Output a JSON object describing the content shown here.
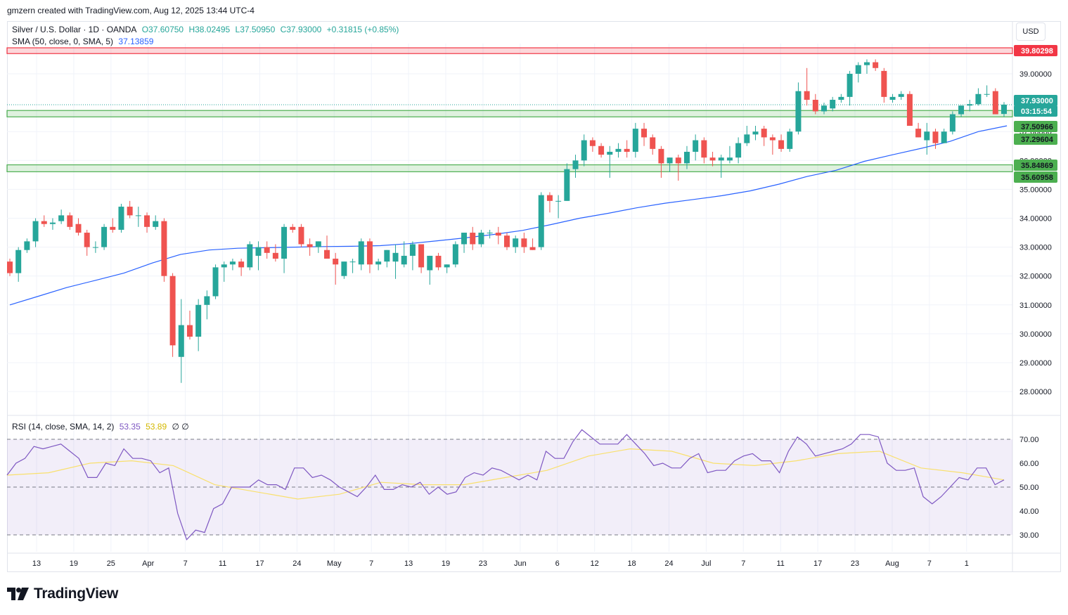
{
  "header": {
    "caption": "gmzern created with TradingView.com, Aug 12, 2025 13:44 UTC-4"
  },
  "legend": {
    "symbol": "Silver / U.S. Dollar · 1D · OANDA",
    "open": "O37.60750",
    "high": "H38.02495",
    "low": "L37.50950",
    "close": "C37.93000",
    "change": "+0.31815 (+0.85%)",
    "sma_label": "SMA (50, close, 0, SMA, 5)",
    "sma_value": "37.13859",
    "rsi_label": "RSI (14, close, SMA, 14, 2)",
    "rsi_value": "53.35",
    "rsi_sma_value": "53.89",
    "rsi_extra": "∅ ∅"
  },
  "currency": "USD",
  "branding": {
    "logo_text": "TradingView"
  },
  "colors": {
    "up": "#26a69a",
    "down": "#ef5350",
    "sma": "#2962ff",
    "rsi": "#7e57c2",
    "rsi_sma": "#f9e06d",
    "resistance": "#f23645",
    "support": "#4caf50"
  },
  "chart_data": {
    "type": "candlestick",
    "price_axis": {
      "ticks": [
        "28.00000",
        "29.00000",
        "30.00000",
        "31.00000",
        "32.00000",
        "33.00000",
        "34.00000",
        "35.00000",
        "36.00000",
        "37.00000",
        "39.00000"
      ]
    },
    "time_axis": [
      "13",
      "19",
      "25",
      "Apr",
      "7",
      "11",
      "17",
      "24",
      "May",
      "7",
      "13",
      "19",
      "23",
      "Jun",
      "6",
      "12",
      "18",
      "24",
      "Jul",
      "7",
      "11",
      "17",
      "23",
      "Aug",
      "7",
      "1"
    ],
    "price_labels": [
      {
        "text": "39.80298",
        "value": 39.80298,
        "kind": "resistance"
      },
      {
        "text": "37.93000",
        "value": 37.93,
        "kind": "last"
      },
      {
        "text": "03:15:54",
        "value": 37.93,
        "kind": "countdown"
      },
      {
        "text": "37.50966",
        "value": 37.50966,
        "kind": "support"
      },
      {
        "text": "37.29604",
        "value": 37.29604,
        "kind": "support"
      },
      {
        "text": "35.84869",
        "value": 35.84869,
        "kind": "support"
      },
      {
        "text": "35.60958",
        "value": 35.60958,
        "kind": "support"
      }
    ],
    "zones": [
      {
        "kind": "resistance",
        "low": 39.7,
        "high": 39.9
      },
      {
        "kind": "support",
        "low": 37.50966,
        "high": 37.73
      },
      {
        "kind": "support",
        "low": 35.60958,
        "high": 35.84869
      }
    ],
    "candles": [
      [
        32.5,
        32.6,
        32.0,
        32.1
      ],
      [
        32.1,
        33.0,
        31.8,
        32.9
      ],
      [
        32.9,
        33.3,
        32.8,
        33.2
      ],
      [
        33.2,
        34.0,
        33.0,
        33.9
      ],
      [
        33.9,
        34.1,
        33.7,
        33.8
      ],
      [
        33.8,
        34.0,
        33.6,
        33.85
      ],
      [
        33.9,
        34.3,
        33.8,
        34.1
      ],
      [
        34.1,
        34.2,
        33.6,
        33.7
      ],
      [
        33.8,
        34.0,
        33.4,
        33.5
      ],
      [
        33.5,
        33.6,
        32.7,
        33.0
      ],
      [
        33.0,
        33.2,
        32.8,
        33.0
      ],
      [
        33.0,
        33.8,
        32.9,
        33.7
      ],
      [
        33.7,
        34.0,
        33.5,
        33.6
      ],
      [
        33.6,
        34.5,
        33.5,
        34.4
      ],
      [
        34.4,
        34.6,
        34.0,
        34.1
      ],
      [
        34.1,
        34.4,
        33.7,
        34.1
      ],
      [
        34.1,
        34.2,
        33.5,
        33.7
      ],
      [
        33.7,
        34.1,
        33.6,
        33.9
      ],
      [
        33.9,
        34.0,
        31.8,
        32.0
      ],
      [
        32.0,
        32.1,
        29.2,
        29.6
      ],
      [
        29.2,
        31.2,
        28.3,
        30.3
      ],
      [
        30.3,
        30.8,
        29.8,
        29.9
      ],
      [
        29.9,
        31.2,
        29.4,
        31.0
      ],
      [
        31.0,
        31.5,
        30.5,
        31.3
      ],
      [
        31.3,
        32.4,
        31.2,
        32.3
      ],
      [
        32.3,
        32.5,
        31.8,
        32.4
      ],
      [
        32.4,
        32.6,
        32.2,
        32.5
      ],
      [
        32.5,
        32.6,
        32.0,
        32.3
      ],
      [
        32.3,
        33.2,
        32.2,
        33.1
      ],
      [
        32.7,
        33.2,
        32.2,
        33.0
      ],
      [
        33.0,
        33.2,
        32.6,
        32.8
      ],
      [
        32.8,
        33.1,
        32.5,
        32.6
      ],
      [
        32.6,
        33.8,
        32.1,
        33.7
      ],
      [
        33.7,
        33.8,
        33.5,
        33.6
      ],
      [
        33.7,
        33.8,
        33.0,
        33.1
      ],
      [
        33.1,
        33.3,
        32.7,
        33.0
      ],
      [
        33.0,
        33.2,
        32.8,
        33.2
      ],
      [
        32.9,
        33.4,
        32.7,
        32.6
      ],
      [
        32.6,
        32.8,
        31.7,
        32.4
      ],
      [
        32.0,
        32.5,
        31.9,
        32.5
      ],
      [
        32.5,
        32.6,
        32.1,
        32.5
      ],
      [
        32.4,
        33.3,
        32.2,
        33.2
      ],
      [
        33.2,
        33.3,
        32.1,
        32.4
      ],
      [
        32.4,
        32.6,
        32.2,
        32.5
      ],
      [
        32.5,
        32.9,
        32.3,
        32.9
      ],
      [
        32.5,
        33.1,
        31.9,
        32.8
      ],
      [
        32.4,
        33.2,
        32.3,
        32.7
      ],
      [
        32.7,
        33.2,
        32.2,
        33.1
      ],
      [
        33.1,
        33.1,
        32.1,
        32.3
      ],
      [
        32.2,
        32.7,
        31.7,
        32.7
      ],
      [
        32.7,
        32.8,
        32.2,
        32.3
      ],
      [
        32.3,
        32.4,
        32.1,
        32.4
      ],
      [
        32.4,
        33.2,
        32.3,
        33.1
      ],
      [
        33.1,
        33.5,
        32.8,
        33.5
      ],
      [
        33.5,
        33.7,
        32.9,
        33.1
      ],
      [
        33.1,
        33.6,
        33.0,
        33.5
      ],
      [
        33.5,
        33.6,
        33.3,
        33.5
      ],
      [
        33.5,
        33.7,
        33.1,
        33.4
      ],
      [
        33.4,
        33.5,
        32.9,
        33.0
      ],
      [
        33.0,
        33.4,
        32.8,
        33.3
      ],
      [
        33.3,
        33.5,
        32.8,
        33.0
      ],
      [
        33.0,
        33.3,
        32.9,
        32.9
      ],
      [
        33.0,
        34.9,
        32.9,
        34.8
      ],
      [
        34.8,
        34.9,
        34.2,
        34.6
      ],
      [
        34.6,
        34.8,
        34.0,
        34.6
      ],
      [
        34.6,
        35.9,
        34.6,
        35.7
      ],
      [
        35.7,
        36.2,
        35.4,
        36.0
      ],
      [
        36.0,
        36.9,
        35.8,
        36.7
      ],
      [
        36.7,
        36.8,
        36.3,
        36.5
      ],
      [
        36.5,
        36.6,
        36.1,
        36.2
      ],
      [
        36.2,
        36.5,
        35.4,
        36.3
      ],
      [
        36.3,
        36.6,
        36.1,
        36.4
      ],
      [
        36.4,
        36.7,
        36.1,
        36.3
      ],
      [
        36.3,
        37.3,
        36.1,
        37.1
      ],
      [
        37.1,
        37.3,
        36.5,
        36.8
      ],
      [
        36.8,
        36.9,
        36.2,
        36.4
      ],
      [
        36.4,
        36.5,
        35.4,
        35.9
      ],
      [
        35.9,
        36.1,
        35.6,
        36.1
      ],
      [
        36.1,
        36.2,
        35.3,
        35.9
      ],
      [
        35.9,
        36.5,
        35.7,
        36.3
      ],
      [
        36.3,
        36.9,
        36.0,
        36.7
      ],
      [
        36.7,
        36.8,
        35.9,
        36.1
      ],
      [
        36.1,
        36.3,
        35.8,
        36.0
      ],
      [
        36.0,
        36.2,
        35.4,
        36.1
      ],
      [
        36.0,
        36.5,
        35.9,
        36.1
      ],
      [
        36.1,
        36.8,
        35.9,
        36.6
      ],
      [
        36.6,
        37.2,
        36.5,
        36.9
      ],
      [
        36.9,
        37.2,
        36.7,
        37.0
      ],
      [
        37.1,
        37.2,
        36.5,
        36.8
      ],
      [
        36.8,
        36.9,
        36.2,
        36.7
      ],
      [
        36.7,
        36.9,
        36.3,
        36.4
      ],
      [
        36.4,
        37.1,
        36.3,
        37.0
      ],
      [
        37.0,
        38.7,
        36.9,
        38.4
      ],
      [
        38.4,
        39.2,
        37.9,
        38.1
      ],
      [
        38.1,
        38.3,
        37.6,
        37.7
      ],
      [
        37.7,
        38.0,
        37.6,
        37.9
      ],
      [
        37.8,
        38.2,
        37.7,
        38.1
      ],
      [
        38.1,
        38.3,
        38.0,
        38.2
      ],
      [
        38.2,
        39.1,
        37.9,
        39.0
      ],
      [
        39.0,
        39.4,
        38.7,
        39.3
      ],
      [
        39.3,
        39.5,
        39.0,
        39.4
      ],
      [
        39.4,
        39.5,
        39.1,
        39.2
      ],
      [
        39.1,
        39.2,
        38.0,
        38.2
      ],
      [
        38.1,
        38.3,
        38.0,
        38.2
      ],
      [
        38.2,
        38.4,
        38.1,
        38.3
      ],
      [
        38.3,
        38.4,
        37.2,
        37.2
      ],
      [
        37.1,
        37.3,
        36.8,
        36.8
      ],
      [
        36.7,
        37.3,
        36.2,
        37.0
      ],
      [
        37.0,
        37.1,
        36.4,
        36.6
      ],
      [
        36.6,
        37.1,
        36.6,
        37.0
      ],
      [
        37.0,
        37.7,
        36.9,
        37.6
      ],
      [
        37.6,
        37.9,
        37.5,
        37.9
      ],
      [
        37.9,
        38.1,
        37.7,
        37.95
      ],
      [
        37.95,
        38.5,
        37.9,
        38.3
      ],
      [
        38.3,
        38.6,
        38.2,
        38.3
      ],
      [
        38.4,
        38.5,
        37.6,
        37.6
      ],
      [
        37.61,
        38.02,
        37.51,
        37.93
      ]
    ],
    "sma": [
      [
        0,
        31.0
      ],
      [
        5,
        31.3
      ],
      [
        10,
        31.6
      ],
      [
        15,
        31.85
      ],
      [
        20,
        32.1
      ],
      [
        25,
        32.45
      ],
      [
        30,
        32.75
      ],
      [
        35,
        32.9
      ],
      [
        40,
        32.96
      ],
      [
        45,
        32.98
      ],
      [
        50,
        33.0
      ],
      [
        55,
        33.02
      ],
      [
        60,
        33.03
      ],
      [
        65,
        33.05
      ],
      [
        70,
        33.12
      ],
      [
        75,
        33.22
      ],
      [
        80,
        33.32
      ],
      [
        85,
        33.44
      ],
      [
        90,
        33.58
      ],
      [
        95,
        33.78
      ],
      [
        100,
        34.0
      ],
      [
        105,
        34.17
      ],
      [
        110,
        34.36
      ],
      [
        115,
        34.52
      ],
      [
        120,
        34.65
      ],
      [
        125,
        34.78
      ],
      [
        130,
        34.95
      ],
      [
        135,
        35.18
      ],
      [
        140,
        35.45
      ],
      [
        145,
        35.66
      ],
      [
        150,
        35.97
      ],
      [
        155,
        36.2
      ],
      [
        160,
        36.42
      ],
      [
        165,
        36.66
      ],
      [
        170,
        37.0
      ],
      [
        175,
        37.2
      ]
    ],
    "rsi_axis": {
      "ticks": [
        "30.00",
        "40.00",
        "50.00",
        "60.00",
        "70.00"
      ],
      "band": [
        30,
        70
      ]
    },
    "rsi": [
      [
        0,
        55
      ],
      [
        2,
        60
      ],
      [
        4,
        62
      ],
      [
        6,
        67
      ],
      [
        8,
        66
      ],
      [
        10,
        67
      ],
      [
        12,
        68
      ],
      [
        14,
        65
      ],
      [
        16,
        62
      ],
      [
        18,
        54
      ],
      [
        20,
        54
      ],
      [
        22,
        60
      ],
      [
        24,
        59
      ],
      [
        26,
        66
      ],
      [
        28,
        62
      ],
      [
        30,
        62
      ],
      [
        32,
        61
      ],
      [
        34,
        56
      ],
      [
        36,
        58
      ],
      [
        38,
        39
      ],
      [
        40,
        28
      ],
      [
        42,
        32
      ],
      [
        44,
        31
      ],
      [
        46,
        41
      ],
      [
        48,
        43
      ],
      [
        50,
        50
      ],
      [
        52,
        50
      ],
      [
        54,
        50
      ],
      [
        56,
        53
      ],
      [
        58,
        51
      ],
      [
        60,
        51
      ],
      [
        62,
        49
      ],
      [
        64,
        58
      ],
      [
        66,
        58
      ],
      [
        68,
        54
      ],
      [
        70,
        55
      ],
      [
        72,
        53
      ],
      [
        74,
        50
      ],
      [
        76,
        48
      ],
      [
        78,
        46
      ],
      [
        80,
        50
      ],
      [
        82,
        55
      ],
      [
        84,
        49
      ],
      [
        86,
        49
      ],
      [
        88,
        51
      ],
      [
        90,
        50
      ],
      [
        92,
        52
      ],
      [
        94,
        47
      ],
      [
        96,
        50
      ],
      [
        98,
        47
      ],
      [
        100,
        48
      ],
      [
        102,
        54
      ],
      [
        104,
        56
      ],
      [
        106,
        55
      ],
      [
        108,
        58
      ],
      [
        110,
        57
      ],
      [
        112,
        55
      ],
      [
        114,
        53
      ],
      [
        116,
        55
      ],
      [
        118,
        53
      ],
      [
        120,
        65
      ],
      [
        122,
        62
      ],
      [
        124,
        62
      ],
      [
        126,
        69
      ],
      [
        128,
        74
      ],
      [
        130,
        71
      ],
      [
        132,
        68
      ],
      [
        134,
        68
      ],
      [
        136,
        68
      ],
      [
        138,
        72
      ],
      [
        140,
        68
      ],
      [
        142,
        64
      ],
      [
        144,
        59
      ],
      [
        146,
        60
      ],
      [
        148,
        58
      ],
      [
        150,
        58
      ],
      [
        152,
        62
      ],
      [
        154,
        64
      ],
      [
        156,
        56
      ],
      [
        158,
        57
      ],
      [
        160,
        57
      ],
      [
        162,
        61
      ],
      [
        164,
        63
      ],
      [
        166,
        64
      ],
      [
        168,
        61
      ],
      [
        170,
        61
      ],
      [
        172,
        56
      ],
      [
        174,
        65
      ],
      [
        176,
        71
      ],
      [
        178,
        68
      ],
      [
        180,
        63
      ],
      [
        182,
        64
      ],
      [
        184,
        65
      ],
      [
        186,
        66
      ],
      [
        188,
        68
      ],
      [
        190,
        72
      ],
      [
        192,
        72
      ],
      [
        194,
        71
      ],
      [
        196,
        60
      ],
      [
        198,
        57
      ],
      [
        200,
        57
      ],
      [
        202,
        58
      ],
      [
        204,
        46
      ],
      [
        206,
        43
      ],
      [
        208,
        46
      ],
      [
        210,
        50
      ],
      [
        212,
        54
      ],
      [
        214,
        53
      ],
      [
        216,
        58
      ],
      [
        218,
        58
      ],
      [
        220,
        51
      ],
      [
        222,
        53
      ]
    ],
    "rsi_sma": [
      [
        0,
        55
      ],
      [
        10,
        56
      ],
      [
        20,
        60
      ],
      [
        30,
        61
      ],
      [
        40,
        59
      ],
      [
        50,
        51
      ],
      [
        60,
        48
      ],
      [
        70,
        45
      ],
      [
        80,
        47
      ],
      [
        90,
        52
      ],
      [
        100,
        51
      ],
      [
        110,
        51
      ],
      [
        120,
        54
      ],
      [
        130,
        57
      ],
      [
        140,
        63
      ],
      [
        150,
        66
      ],
      [
        160,
        65
      ],
      [
        170,
        60
      ],
      [
        180,
        59
      ],
      [
        190,
        61
      ],
      [
        200,
        64
      ],
      [
        210,
        65
      ],
      [
        220,
        58
      ],
      [
        230,
        56
      ],
      [
        240,
        53
      ]
    ]
  }
}
